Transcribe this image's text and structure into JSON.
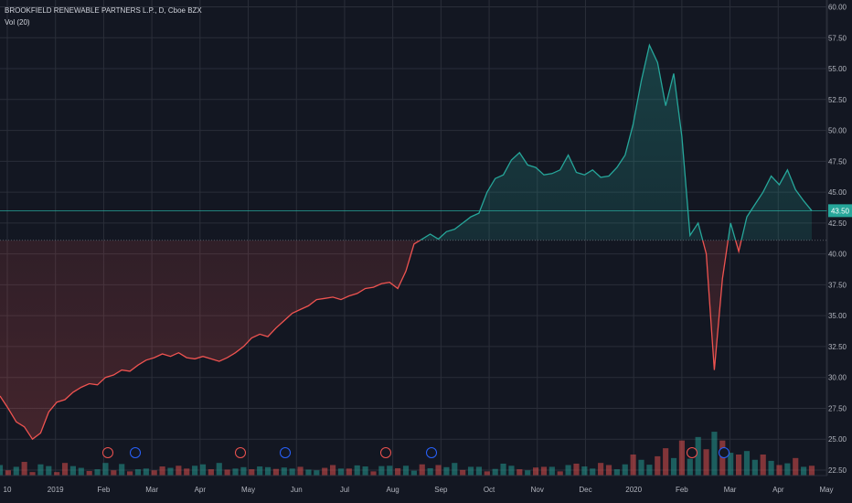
{
  "legend": {
    "symbol_line": "BROOKFIELD RENEWABLE PARTNERS L.P., D, Cboe BZX",
    "volume_line": "Vol (20)"
  },
  "colors": {
    "background": "#131722",
    "grid": "#2a2e39",
    "up": "#26a69a",
    "down": "#ef5350",
    "axis_text": "#b2b5be",
    "last_price_bg": "#26a69a"
  },
  "chart_data": {
    "type": "line",
    "title": "BROOKFIELD RENEWABLE PARTNERS L.P., D, Cboe BZX",
    "ylim": [
      22.5,
      61.0
    ],
    "y_ticks": [
      "60.00",
      "57.50",
      "55.00",
      "52.50",
      "50.00",
      "47.50",
      "45.00",
      "42.50",
      "40.00",
      "37.50",
      "35.00",
      "32.50",
      "30.00",
      "27.50",
      "25.00",
      "22.50"
    ],
    "x_ticks": [
      "10",
      "2019",
      "Feb",
      "Mar",
      "Apr",
      "May",
      "Jun",
      "Jul",
      "Aug",
      "Sep",
      "Oct",
      "Nov",
      "Dec",
      "2020",
      "Feb",
      "Mar",
      "Apr",
      "May"
    ],
    "last_price": "43.50",
    "baseline_price": 41.1,
    "x_range": [
      0,
      100
    ],
    "series": [
      {
        "x": [
          0,
          1,
          2,
          3,
          4,
          5,
          6,
          7,
          8,
          9,
          10,
          11,
          12,
          13,
          14,
          15,
          16,
          17,
          18,
          19,
          20,
          21,
          22,
          23,
          24,
          25,
          26,
          27,
          28,
          29,
          30,
          31,
          32,
          33,
          34,
          35,
          36,
          37,
          38,
          39,
          40,
          41,
          42,
          43,
          44,
          45,
          46,
          47,
          48,
          49,
          50,
          51,
          52,
          53,
          54,
          55,
          56,
          57,
          58,
          59,
          60,
          61,
          62,
          63,
          64,
          65,
          66,
          67,
          68,
          69,
          70,
          71,
          72,
          73,
          74,
          75,
          76,
          77,
          78,
          79,
          80,
          81,
          82,
          83,
          84,
          85,
          86,
          87,
          88,
          89,
          90,
          91,
          92,
          93,
          94,
          95,
          96,
          97,
          98,
          99,
          100
        ],
        "y": [
          28.5,
          27.5,
          26.4,
          26.0,
          25.0,
          25.5,
          27.2,
          28.0,
          28.2,
          28.8,
          29.2,
          29.5,
          29.4,
          30.0,
          30.2,
          30.6,
          30.5,
          31.0,
          31.4,
          31.6,
          31.9,
          31.7,
          32.0,
          31.6,
          31.5,
          31.7,
          31.5,
          31.3,
          31.6,
          32.0,
          32.5,
          33.2,
          33.5,
          33.3,
          34.0,
          34.6,
          35.2,
          35.5,
          35.8,
          36.3,
          36.4,
          36.5,
          36.3,
          36.6,
          36.8,
          37.2,
          37.3,
          37.6,
          37.7,
          37.2,
          38.6,
          40.8,
          41.2,
          41.6,
          41.2,
          41.8,
          42.0,
          42.5,
          43.0,
          43.3,
          45.0,
          46.1,
          46.4,
          47.6,
          48.2,
          47.2,
          47.0,
          46.4,
          46.5,
          46.8,
          48.0,
          46.6,
          46.4,
          46.8,
          46.2,
          46.3,
          47.0,
          48.0,
          50.5,
          54.0,
          56.9,
          55.5,
          52.0,
          54.6,
          49.5,
          41.5,
          42.5,
          40.0,
          30.6,
          38.0,
          42.5,
          40.2,
          43.0,
          44.0,
          45.0,
          46.3,
          45.6,
          46.8,
          45.2,
          44.3,
          43.5
        ]
      }
    ],
    "volume": {
      "name": "Vol (20)",
      "max_value": 30.0,
      "values": [
        3.0,
        1.5,
        2.5,
        3.9,
        1.0,
        3.2,
        2.7,
        1.0,
        3.6,
        2.7,
        2.2,
        1.3,
        1.8,
        3.6,
        1.5,
        3.3,
        1.2,
        1.8,
        2.0,
        1.5,
        2.6,
        2.2,
        2.8,
        2.0,
        2.8,
        3.2,
        1.8,
        3.6,
        1.7,
        2.0,
        2.4,
        1.8,
        2.6,
        2.4,
        1.9,
        2.3,
        2.0,
        2.5,
        1.7,
        1.5,
        2.2,
        3.0,
        2.0,
        2.0,
        2.9,
        2.6,
        1.2,
        2.7,
        2.8,
        2.1,
        2.8,
        1.4,
        3.2,
        2.1,
        3.0,
        2.4,
        3.6,
        1.6,
        2.5,
        2.5,
        1.2,
        1.9,
        3.4,
        2.8,
        1.8,
        1.5,
        2.3,
        2.5,
        2.5,
        1.2,
        3.0,
        3.4,
        2.6,
        2.0,
        3.6,
        3.0,
        1.8,
        3.2,
        6.0,
        4.5,
        3.1,
        5.5,
        7.8,
        5.0,
        10.0,
        4.8,
        11.0,
        7.5,
        12.5,
        10.0,
        6.5,
        6.0,
        7.0,
        4.5,
        6.0,
        4.2,
        3.0,
        3.5,
        5.0,
        2.5,
        2.8
      ],
      "up": [
        true,
        false,
        true,
        false,
        false,
        true,
        true,
        false,
        false,
        true,
        true,
        false,
        true,
        true,
        false,
        true,
        false,
        true,
        true,
        false,
        false,
        true,
        false,
        false,
        true,
        true,
        false,
        true,
        false,
        true,
        true,
        false,
        true,
        true,
        false,
        true,
        true,
        false,
        true,
        true,
        false,
        false,
        true,
        false,
        true,
        true,
        false,
        true,
        true,
        false,
        true,
        true,
        false,
        true,
        false,
        true,
        true,
        false,
        true,
        true,
        false,
        true,
        true,
        true,
        false,
        true,
        false,
        false,
        true,
        false,
        true,
        false,
        true,
        true,
        false,
        false,
        true,
        true,
        false,
        true,
        true,
        false,
        false,
        true,
        false,
        true,
        true,
        false,
        true,
        false,
        true,
        false,
        true,
        true,
        false,
        true,
        false,
        true,
        false,
        true,
        false
      ]
    },
    "grid": true,
    "legend_position": "top-left"
  }
}
